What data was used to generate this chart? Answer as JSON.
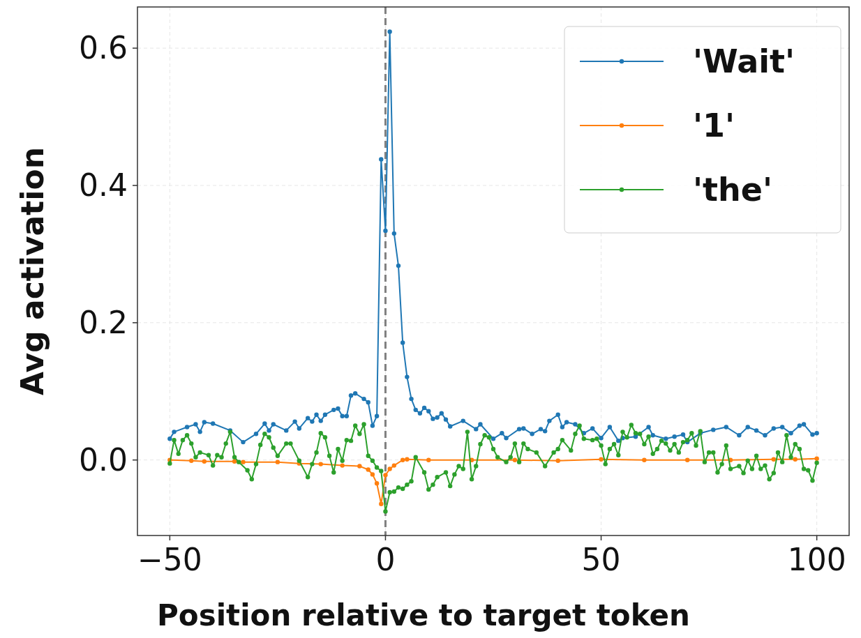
{
  "chart_data": {
    "type": "line",
    "xlabel": "Position relative to target token",
    "ylabel": "Avg activation",
    "xlim": [
      -57.5,
      107.5
    ],
    "ylim": [
      -0.11,
      0.66
    ],
    "xticks": [
      {
        "value": -50,
        "label": "−50"
      },
      0,
      50,
      100
    ],
    "yticks": [
      {
        "value": 0,
        "label": "0.0"
      },
      {
        "value": 0.2,
        "label": "0.2"
      },
      {
        "value": 0.4,
        "label": "0.4"
      },
      {
        "value": 0.6,
        "label": "0.6"
      }
    ],
    "grid": true,
    "legend": "top right",
    "marker": "circle",
    "line_style": "solid",
    "ref_lines": [
      {
        "axis": "x",
        "value": 0,
        "color": "#808080",
        "line_style": "dashed"
      }
    ],
    "series": [
      {
        "name": "'Wait'",
        "color": "#1f77b4",
        "x": [
          -50,
          -49,
          -46,
          -44,
          -43,
          -42,
          -40,
          -36,
          -33,
          -30,
          -28,
          -27,
          -26,
          -23,
          -21,
          -20,
          -18,
          -17,
          -16,
          -15,
          -14,
          -12,
          -11,
          -10,
          -9,
          -8,
          -7,
          -5,
          -4,
          -3,
          -2,
          -1,
          0,
          1,
          2,
          3,
          4,
          5,
          6,
          7,
          8,
          9,
          10,
          11,
          12,
          13,
          14,
          15,
          18,
          21,
          22,
          25,
          27,
          28,
          31,
          32,
          34,
          36,
          37,
          38,
          40,
          41,
          42,
          44,
          46,
          48,
          50,
          52,
          54,
          55,
          58,
          61,
          62,
          65,
          67,
          69,
          70,
          73,
          76,
          79,
          82,
          84,
          86,
          88,
          90,
          92,
          94,
          96,
          97,
          99,
          100
        ],
        "values": [
          0.031,
          0.041,
          0.048,
          0.052,
          0.041,
          0.055,
          0.053,
          0.043,
          0.026,
          0.038,
          0.053,
          0.043,
          0.052,
          0.043,
          0.056,
          0.046,
          0.061,
          0.056,
          0.066,
          0.057,
          0.066,
          0.073,
          0.075,
          0.064,
          0.064,
          0.094,
          0.097,
          0.089,
          0.084,
          0.05,
          0.064,
          0.438,
          0.334,
          0.624,
          0.33,
          0.283,
          0.171,
          0.121,
          0.089,
          0.073,
          0.068,
          0.076,
          0.071,
          0.06,
          0.062,
          0.068,
          0.059,
          0.049,
          0.057,
          0.045,
          0.052,
          0.031,
          0.039,
          0.032,
          0.045,
          0.046,
          0.038,
          0.045,
          0.042,
          0.057,
          0.066,
          0.048,
          0.055,
          0.052,
          0.039,
          0.046,
          0.032,
          0.048,
          0.028,
          0.032,
          0.034,
          0.048,
          0.036,
          0.031,
          0.034,
          0.037,
          0.026,
          0.039,
          0.044,
          0.048,
          0.036,
          0.048,
          0.043,
          0.036,
          0.046,
          0.048,
          0.039,
          0.05,
          0.052,
          0.037,
          0.039
        ]
      },
      {
        "name": "'1'",
        "color": "#ff7f0e",
        "x": [
          -50,
          -45,
          -42,
          -35,
          -33,
          -25,
          -20,
          -15,
          -10,
          -6,
          -4,
          -3,
          -2,
          -1,
          0,
          1,
          2,
          4,
          5,
          10,
          20,
          30,
          40,
          50,
          60,
          70,
          80,
          90,
          95,
          100
        ],
        "values": [
          0,
          -0.001,
          -0.002,
          -0.002,
          -0.003,
          -0.003,
          -0.005,
          -0.006,
          -0.008,
          -0.009,
          -0.014,
          -0.021,
          -0.034,
          -0.064,
          -0.022,
          -0.013,
          -0.008,
          0,
          0.001,
          0,
          0,
          0,
          -0.001,
          0.001,
          0,
          0,
          0,
          0.001,
          0.001,
          0.002
        ]
      },
      {
        "name": "'the'",
        "color": "#2ca02c",
        "x": [
          -50,
          -49,
          -48,
          -47,
          -46,
          -45,
          -44,
          -43,
          -41,
          -40,
          -39,
          -38,
          -37,
          -36,
          -35,
          -34,
          -32,
          -31,
          -30,
          -29,
          -28,
          -27,
          -26,
          -25,
          -23,
          -22,
          -20,
          -18,
          -17,
          -16,
          -15,
          -14,
          -13,
          -12,
          -11,
          -10,
          -9,
          -8,
          -7,
          -6,
          -5,
          -4,
          -3,
          -2,
          -1,
          0,
          1,
          2,
          3,
          4,
          5,
          6,
          7,
          9,
          10,
          11,
          12,
          14,
          15,
          16,
          17,
          18,
          19,
          20,
          21,
          22,
          23,
          24,
          25,
          26,
          28,
          29,
          30,
          31,
          32,
          33,
          35,
          37,
          39,
          40,
          41,
          43,
          44,
          45,
          46,
          48,
          49,
          50,
          51,
          52,
          53,
          54,
          55,
          56,
          57,
          58,
          59,
          60,
          61,
          62,
          63,
          64,
          65,
          66,
          67,
          68,
          69,
          70,
          71,
          72,
          73,
          74,
          75,
          76,
          77,
          78,
          79,
          80,
          82,
          83,
          84,
          85,
          86,
          87,
          88,
          89,
          90,
          91,
          92,
          93,
          94,
          95,
          96,
          97,
          98,
          99,
          100
        ],
        "values": [
          -0.005,
          0.029,
          0.009,
          0.029,
          0.036,
          0.024,
          0.004,
          0.011,
          0.007,
          -0.008,
          0.007,
          0.004,
          0.024,
          0.041,
          0.004,
          -0.003,
          -0.015,
          -0.028,
          -0.006,
          0.022,
          0.038,
          0.033,
          0.018,
          0.006,
          0.024,
          0.024,
          -0.001,
          -0.025,
          -0.006,
          0.011,
          0.039,
          0.033,
          0.006,
          -0.018,
          0.016,
          -0.001,
          0.029,
          0.028,
          0.05,
          0.038,
          0.052,
          0.006,
          -0.001,
          -0.011,
          -0.016,
          -0.075,
          -0.047,
          -0.046,
          -0.04,
          -0.042,
          -0.036,
          -0.031,
          0.004,
          -0.018,
          -0.043,
          -0.036,
          -0.025,
          -0.018,
          -0.038,
          -0.021,
          -0.009,
          -0.013,
          0.041,
          -0.028,
          -0.009,
          0.023,
          0.036,
          0.033,
          0.016,
          0.004,
          -0.003,
          0.004,
          0.024,
          -0.003,
          0.024,
          0.016,
          0.011,
          -0.009,
          0.011,
          0.016,
          0.029,
          0.014,
          0.038,
          0.05,
          0.031,
          0.029,
          0.031,
          0.021,
          -0.006,
          0.016,
          0.023,
          0.007,
          0.041,
          0.033,
          0.051,
          0.039,
          0.038,
          0.023,
          0.034,
          0.009,
          0.016,
          0.028,
          0.024,
          0.014,
          0.023,
          0.011,
          0.026,
          0.029,
          0.039,
          0.021,
          0.042,
          -0.003,
          0.011,
          0.011,
          -0.018,
          -0.006,
          0.021,
          -0.013,
          -0.009,
          -0.019,
          -0.001,
          -0.013,
          0.006,
          -0.013,
          -0.008,
          -0.028,
          -0.019,
          0.011,
          -0.003,
          0.036,
          0.004,
          0.023,
          0.016,
          -0.013,
          -0.015,
          -0.03,
          -0.004
        ]
      }
    ]
  }
}
